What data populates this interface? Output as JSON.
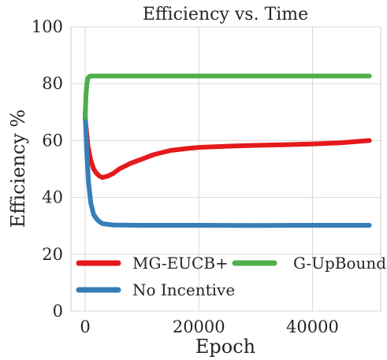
{
  "chart_data": {
    "type": "line",
    "title": "Efficiency vs. Time",
    "xlabel": "Epoch",
    "ylabel": "Efficiency %",
    "xlim": [
      -2500,
      52000
    ],
    "ylim": [
      0,
      100
    ],
    "xticks": [
      0,
      20000,
      40000
    ],
    "xtick_labels": [
      "0",
      "20000",
      "40000"
    ],
    "yticks": [
      0,
      20,
      40,
      60,
      80,
      100
    ],
    "ytick_labels": [
      "0",
      "20",
      "40",
      "60",
      "80",
      "100"
    ],
    "grid": true,
    "legend_position": "lower-left",
    "series": [
      {
        "name": "MG-EUCB+",
        "color": "#e41a1c",
        "x": [
          0,
          500,
          1000,
          1500,
          2000,
          2500,
          3000,
          4000,
          5000,
          6000,
          8000,
          10000,
          12000,
          15000,
          18000,
          20000,
          25000,
          30000,
          35000,
          40000,
          45000,
          50000
        ],
        "y": [
          68,
          58,
          53,
          50,
          48.5,
          47.5,
          47,
          47.5,
          48.5,
          50,
          52,
          53.5,
          55,
          56.5,
          57.2,
          57.6,
          58,
          58.3,
          58.5,
          58.8,
          59.2,
          60
        ]
      },
      {
        "name": "No Incentive",
        "color": "#377eb8",
        "x": [
          0,
          300,
          600,
          1000,
          1500,
          2000,
          2500,
          3000,
          4000,
          5000,
          10000,
          20000,
          30000,
          40000,
          50000
        ],
        "y": [
          70,
          55,
          45,
          38,
          34,
          32.5,
          31.5,
          30.8,
          30.5,
          30.3,
          30.2,
          30.2,
          30.1,
          30.2,
          30.2
        ]
      },
      {
        "name": "G-UpBound",
        "color": "#4daf4a",
        "x": [
          0,
          150,
          300,
          500,
          800,
          1000,
          50000
        ],
        "y": [
          68,
          76,
          80,
          82,
          82.6,
          82.7,
          82.7
        ]
      }
    ]
  }
}
